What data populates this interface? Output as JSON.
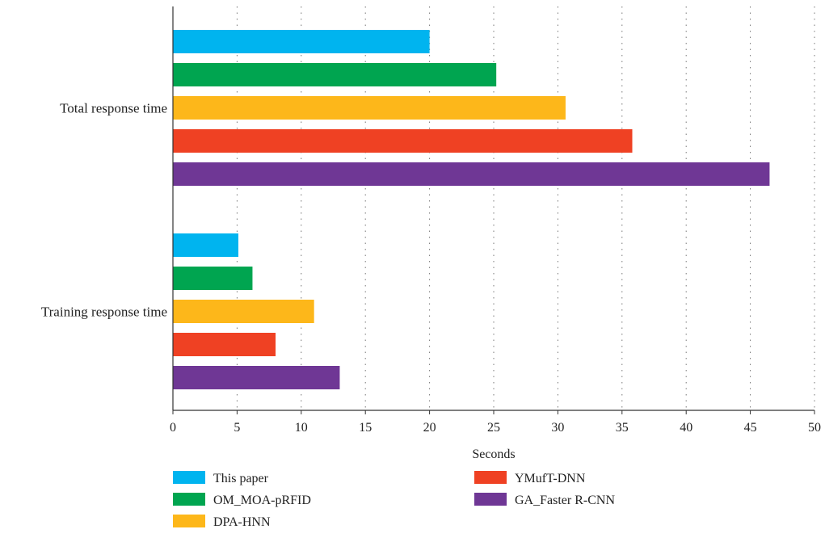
{
  "chart_data": {
    "type": "bar",
    "orientation": "horizontal",
    "categories": [
      "Total response time",
      "Training response time"
    ],
    "series": [
      {
        "name": "This paper",
        "color": "#00B4EF",
        "values": [
          20.0,
          5.1
        ]
      },
      {
        "name": "OM_MOA-pRFID",
        "color": "#00A550",
        "values": [
          25.2,
          6.2
        ]
      },
      {
        "name": "DPA-HNN",
        "color": "#FDB71A",
        "values": [
          30.6,
          11.0
        ]
      },
      {
        "name": "YMufT-DNN",
        "color": "#EF4123",
        "values": [
          35.8,
          8.0
        ]
      },
      {
        "name": "GA_Faster R-CNN",
        "color": "#6F3795",
        "values": [
          46.5,
          13.0
        ]
      }
    ],
    "xlabel": "Seconds",
    "ylabel": "",
    "xlim": [
      0,
      50
    ],
    "xticks": [
      0,
      5,
      10,
      15,
      20,
      25,
      30,
      35,
      40,
      45,
      50
    ],
    "grid": "vertical-dotted",
    "legend_position": "bottom"
  }
}
